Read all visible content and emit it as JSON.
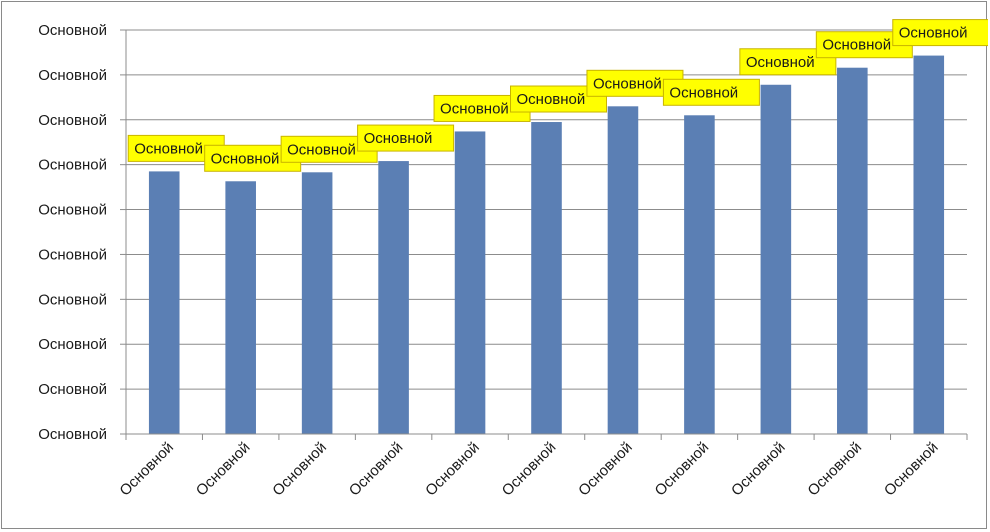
{
  "chart_data": {
    "type": "bar",
    "title": "",
    "xlabel": "",
    "ylabel": "",
    "categories": [
      "Основной",
      "Основной",
      "Основной",
      "Основной",
      "Основной",
      "Основной",
      "Основной",
      "Основной",
      "Основной",
      "Основной",
      "Основной"
    ],
    "values": [
      5.85,
      5.63,
      5.83,
      6.08,
      6.74,
      6.95,
      7.3,
      7.1,
      7.78,
      8.16,
      8.43
    ],
    "data_labels": [
      "Основной",
      "Основной",
      "Основной",
      "Основной",
      "Основной",
      "Основной",
      "Основной",
      "Основной",
      "Основной",
      "Основной",
      "Основной"
    ],
    "y_tick_labels": [
      "Основной",
      "Основной",
      "Основной",
      "Основной",
      "Основной",
      "Основной",
      "Основной",
      "Основной",
      "Основной",
      "Основной"
    ],
    "ylim": [
      0,
      9
    ],
    "grid": true,
    "legend": "none",
    "bar_color": "#5b7fb4",
    "data_label_fill": "#ffff00",
    "data_label_border": "#c8b400"
  }
}
